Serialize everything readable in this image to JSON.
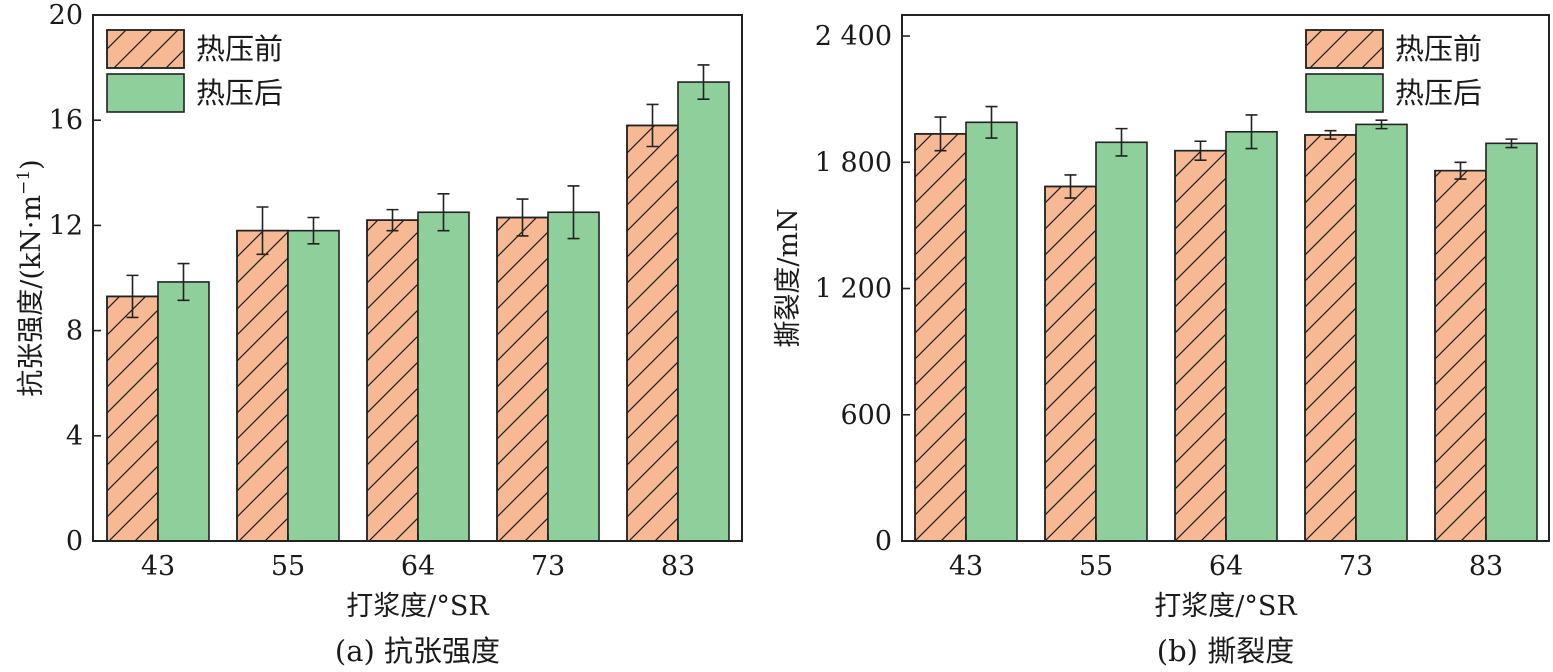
{
  "chart_data": [
    {
      "type": "bar",
      "categories": [
        "43",
        "55",
        "64",
        "73",
        "83"
      ],
      "xlabel": "打浆度/°SR",
      "ylabel_main": "抗张强度/(kN·m",
      "ylabel_sup": "−1",
      "ylabel_close": ")",
      "ylim": [
        0,
        20
      ],
      "yticks": [
        0,
        4,
        8,
        12,
        16,
        20
      ],
      "ytick_labels": [
        "0",
        "4",
        "8",
        "12",
        "16",
        "20"
      ],
      "caption": "(a) 抗张强度",
      "legend_position": "top-left",
      "grid": false,
      "series": [
        {
          "name": "热压前",
          "values": [
            9.3,
            11.8,
            12.2,
            12.3,
            15.8
          ],
          "errors": [
            0.8,
            0.9,
            0.4,
            0.7,
            0.8
          ],
          "color": "#f7b994",
          "hatch": true
        },
        {
          "name": "热压后",
          "values": [
            9.85,
            11.8,
            12.5,
            12.5,
            17.45
          ],
          "errors": [
            0.7,
            0.5,
            0.7,
            1.0,
            0.65
          ],
          "color": "#8ecf9c",
          "hatch": false
        }
      ]
    },
    {
      "type": "bar",
      "categories": [
        "43",
        "55",
        "64",
        "73",
        "83"
      ],
      "xlabel": "打浆度/°SR",
      "ylabel_main": "撕裂度/mN",
      "ylabel_sup": "",
      "ylabel_close": "",
      "ylim": [
        0,
        2500
      ],
      "yticks": [
        0,
        600,
        1200,
        1800,
        2400
      ],
      "ytick_labels": [
        "0",
        "600",
        "1 200",
        "1 800",
        "2 400"
      ],
      "caption": "(b) 撕裂度",
      "legend_position": "top-right",
      "grid": false,
      "series": [
        {
          "name": "热压前",
          "values": [
            1935,
            1685,
            1855,
            1930,
            1760
          ],
          "errors": [
            80,
            55,
            45,
            20,
            40
          ],
          "color": "#f7b994",
          "hatch": true
        },
        {
          "name": "热压后",
          "values": [
            1990,
            1895,
            1945,
            1980,
            1890
          ],
          "errors": [
            75,
            65,
            80,
            20,
            20
          ],
          "color": "#8ecf9c",
          "hatch": false
        }
      ]
    }
  ]
}
